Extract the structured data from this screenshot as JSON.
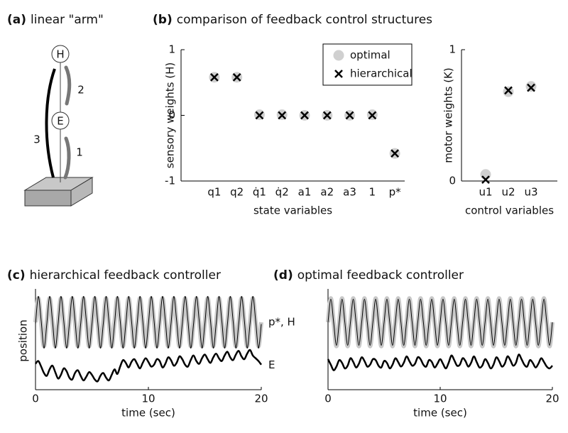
{
  "diagram": {
    "label": "(a)",
    "title": "linear \"arm\"",
    "nodes": [
      "H",
      "E"
    ],
    "segments": [
      "1",
      "2",
      "3"
    ]
  },
  "chart_data": [
    {
      "type": "scatter",
      "label": "(b)",
      "title": "comparison of feedback control structures",
      "ylabel": "sensory weights (H)",
      "xlabel": "state variables",
      "categories": [
        "q1",
        "q2",
        "q̇1",
        "q̇2",
        "a1",
        "a2",
        "a3",
        "1",
        "p*"
      ],
      "ylim": [
        -1,
        1
      ],
      "yticks": [
        -1,
        0,
        1
      ],
      "legend": "upper right",
      "series": [
        {
          "name": "optimal",
          "color": "#d0d0d0",
          "marker": "o",
          "values": [
            0.58,
            0.58,
            0.01,
            0.01,
            0,
            0,
            0,
            0.01,
            -0.58
          ]
        },
        {
          "name": "hierarchical",
          "color": "#000000",
          "marker": "x",
          "values": [
            0.58,
            0.58,
            0,
            0,
            0,
            0,
            0,
            0,
            -0.58
          ]
        }
      ]
    },
    {
      "type": "scatter",
      "ylabel": "motor weights (K)",
      "xlabel": "control variables",
      "categories": [
        "u1",
        "u2",
        "u3"
      ],
      "ylim": [
        0,
        1
      ],
      "yticks": [
        0,
        1
      ],
      "series": [
        {
          "color": "#d0d0d0",
          "marker": "o",
          "values": [
            0.05,
            0.68,
            0.72
          ]
        },
        {
          "color": "#000000",
          "marker": "x",
          "values": [
            0.01,
            0.69,
            0.71
          ]
        }
      ]
    },
    {
      "type": "line",
      "label": "(c)",
      "title": "hierarchical feedback controller",
      "ylabel": "position",
      "xlabel": "time (sec)",
      "xlim": [
        0,
        20
      ],
      "xticks": [
        0,
        10,
        20
      ],
      "ylim": [
        0,
        10
      ],
      "x": [
        0,
        0.25,
        0.5,
        0.75,
        1,
        1.25,
        1.5,
        1.75,
        2,
        2.25,
        2.5,
        2.75,
        3,
        3.25,
        3.5,
        3.75,
        4,
        4.25,
        4.5,
        4.75,
        5,
        5.25,
        5.5,
        5.75,
        6,
        6.25,
        6.5,
        6.75,
        7,
        7.25,
        7.5,
        7.75,
        8,
        8.25,
        8.5,
        8.75,
        9,
        9.25,
        9.5,
        9.75,
        10,
        10.25,
        10.5,
        10.75,
        11,
        11.25,
        11.5,
        11.75,
        12,
        12.25,
        12.5,
        12.75,
        13,
        13.25,
        13.5,
        13.75,
        14,
        14.25,
        14.5,
        14.75,
        15,
        15.25,
        15.5,
        15.75,
        16,
        16.25,
        16.5,
        16.75,
        17,
        17.25,
        17.5,
        17.75,
        18,
        18.25,
        18.5,
        18.75,
        19,
        19.25,
        19.5,
        19.75,
        20
      ],
      "series": [
        {
          "name": "p*, H",
          "color": "#c8c8c8",
          "width": 6,
          "values": [
            7,
            9.6,
            7,
            4.4,
            7,
            9.6,
            7,
            4.4,
            7,
            9.6,
            7,
            4.4,
            7,
            9.6,
            7,
            4.4,
            7,
            9.6,
            7,
            4.4,
            7,
            9.6,
            7,
            4.4,
            7,
            9.6,
            7,
            4.4,
            7,
            9.6,
            7,
            4.4,
            7,
            9.6,
            7,
            4.4,
            7,
            9.6,
            7,
            4.4,
            7,
            9.6,
            7,
            4.4,
            7,
            9.6,
            7,
            4.4,
            7,
            9.6,
            7,
            4.4,
            7,
            9.6,
            7,
            4.4,
            7,
            9.6,
            7,
            4.4,
            7,
            9.6,
            7,
            4.4,
            7,
            9.6,
            7,
            4.4,
            7,
            9.6,
            7,
            4.4,
            7,
            9.6,
            7,
            4.4,
            7,
            9.6,
            7,
            4.4,
            7
          ]
        },
        {
          "color": "#000000",
          "width": 1,
          "values": [
            6.8,
            9.8,
            7.2,
            4.2,
            6.8,
            9.8,
            7.2,
            4.2,
            6.8,
            9.8,
            7.2,
            4.2,
            6.8,
            9.8,
            7.2,
            4.2,
            6.8,
            9.8,
            7.2,
            4.2,
            6.8,
            9.8,
            7.2,
            4.2,
            6.8,
            9.8,
            7.2,
            4.2,
            6.8,
            9.8,
            7.2,
            4.2,
            6.8,
            9.8,
            7.2,
            4.2,
            6.8,
            9.8,
            7.2,
            4.2,
            6.8,
            9.8,
            7.2,
            4.2,
            6.8,
            9.8,
            7.2,
            4.2,
            6.8,
            9.8,
            7.2,
            4.2,
            6.8,
            9.8,
            7.2,
            4.2,
            6.8,
            9.8,
            7.2,
            4.2,
            6.8,
            9.8,
            7.2,
            4.2,
            6.8,
            9.8,
            7.2,
            4.2,
            6.8,
            9.8,
            7.2,
            4.2,
            6.8,
            9.8,
            7.2,
            4.2,
            6.8,
            9.8,
            7.2,
            4.2,
            6.8
          ]
        },
        {
          "name": "E",
          "color": "#000000",
          "width": 2.5,
          "values": [
            2.5,
            2.8,
            2.2,
            1.5,
            1.2,
            1.9,
            2.3,
            1.6,
            0.9,
            1.3,
            2.0,
            1.7,
            1.0,
            0.8,
            1.5,
            1.8,
            1.2,
            0.7,
            1.1,
            1.6,
            1.3,
            0.8,
            0.6,
            1.2,
            1.5,
            1.0,
            0.7,
            1.3,
            1.9,
            1.4,
            2.2,
            2.9,
            2.6,
            2.1,
            2.7,
            3.0,
            2.5,
            2.0,
            2.6,
            3.1,
            2.7,
            2.2,
            2.4,
            3.0,
            2.8,
            2.1,
            2.5,
            3.2,
            2.9,
            2.3,
            2.6,
            3.3,
            3.0,
            2.4,
            2.2,
            2.9,
            3.4,
            2.8,
            2.5,
            3.1,
            3.5,
            3.0,
            2.6,
            3.2,
            3.6,
            3.1,
            2.8,
            3.4,
            3.8,
            3.2,
            2.9,
            3.5,
            3.9,
            3.3,
            3.0,
            3.6,
            4.0,
            3.4,
            3.1,
            2.8,
            2.4
          ]
        }
      ]
    },
    {
      "type": "line",
      "label": "(d)",
      "title": "optimal feedback controller",
      "xlabel": "time (sec)",
      "xlim": [
        0,
        20
      ],
      "xticks": [
        0,
        10,
        20
      ],
      "ylim": [
        0,
        10
      ],
      "x": [
        0,
        0.25,
        0.5,
        0.75,
        1,
        1.25,
        1.5,
        1.75,
        2,
        2.25,
        2.5,
        2.75,
        3,
        3.25,
        3.5,
        3.75,
        4,
        4.25,
        4.5,
        4.75,
        5,
        5.25,
        5.5,
        5.75,
        6,
        6.25,
        6.5,
        6.75,
        7,
        7.25,
        7.5,
        7.75,
        8,
        8.25,
        8.5,
        8.75,
        9,
        9.25,
        9.5,
        9.75,
        10,
        10.25,
        10.5,
        10.75,
        11,
        11.25,
        11.5,
        11.75,
        12,
        12.25,
        12.5,
        12.75,
        13,
        13.25,
        13.5,
        13.75,
        14,
        14.25,
        14.5,
        14.75,
        15,
        15.25,
        15.5,
        15.75,
        16,
        16.25,
        16.5,
        16.75,
        17,
        17.25,
        17.5,
        17.75,
        18,
        18.25,
        18.5,
        18.75,
        19,
        19.25,
        19.5,
        19.75,
        20
      ],
      "series": [
        {
          "color": "#c8c8c8",
          "width": 6,
          "values": [
            7,
            9.6,
            7,
            4.4,
            7,
            9.6,
            7,
            4.4,
            7,
            9.6,
            7,
            4.4,
            7,
            9.6,
            7,
            4.4,
            7,
            9.6,
            7,
            4.4,
            7,
            9.6,
            7,
            4.4,
            7,
            9.6,
            7,
            4.4,
            7,
            9.6,
            7,
            4.4,
            7,
            9.6,
            7,
            4.4,
            7,
            9.6,
            7,
            4.4,
            7,
            9.6,
            7,
            4.4,
            7,
            9.6,
            7,
            4.4,
            7,
            9.6,
            7,
            4.4,
            7,
            9.6,
            7,
            4.4,
            7,
            9.6,
            7,
            4.4,
            7,
            9.6,
            7,
            4.4,
            7,
            9.6,
            7,
            4.4,
            7,
            9.6,
            7,
            4.4,
            7,
            9.6,
            7,
            4.4,
            7,
            9.6,
            7,
            4.4,
            7
          ]
        },
        {
          "color": "#000000",
          "width": 1,
          "values": [
            7,
            9.5,
            7,
            4.5,
            7,
            9.5,
            7,
            4.5,
            7,
            9.5,
            7,
            4.5,
            7,
            9.5,
            7,
            4.5,
            7,
            9.5,
            7,
            4.5,
            7,
            9.5,
            7,
            4.5,
            7,
            9.5,
            7,
            4.5,
            7,
            9.5,
            7,
            4.5,
            7,
            9.5,
            7,
            4.5,
            7,
            9.5,
            7,
            4.5,
            7,
            9.5,
            7,
            4.5,
            7,
            9.5,
            7,
            4.5,
            7,
            9.5,
            7,
            4.5,
            7,
            9.5,
            7,
            4.5,
            7,
            9.5,
            7,
            4.5,
            7,
            9.5,
            7,
            4.5,
            7,
            9.5,
            7,
            4.5,
            7,
            9.5,
            7,
            4.5,
            7,
            9.5,
            7,
            4.5,
            7,
            9.5,
            7,
            4.5,
            7
          ]
        },
        {
          "color": "#000000",
          "width": 2.5,
          "values": [
            3.0,
            2.4,
            1.8,
            2.2,
            2.9,
            2.6,
            2.0,
            2.3,
            3.1,
            2.7,
            2.1,
            2.5,
            3.2,
            2.8,
            2.2,
            2.4,
            3.0,
            2.9,
            2.3,
            2.1,
            2.8,
            2.6,
            2.0,
            2.4,
            3.1,
            2.7,
            2.2,
            2.6,
            3.3,
            2.8,
            2.3,
            2.5,
            3.2,
            3.0,
            2.4,
            2.2,
            2.9,
            2.7,
            2.1,
            2.5,
            3.0,
            2.5,
            2.0,
            2.6,
            3.4,
            2.9,
            2.3,
            2.4,
            3.1,
            2.8,
            2.2,
            2.6,
            3.3,
            2.7,
            2.1,
            2.3,
            3.0,
            2.6,
            2.0,
            2.4,
            3.2,
            2.8,
            2.2,
            2.5,
            3.3,
            2.9,
            2.3,
            2.6,
            3.5,
            3.0,
            2.4,
            2.2,
            2.9,
            2.6,
            2.1,
            2.5,
            3.1,
            2.7,
            2.2,
            2.0,
            2.3
          ]
        }
      ]
    }
  ]
}
